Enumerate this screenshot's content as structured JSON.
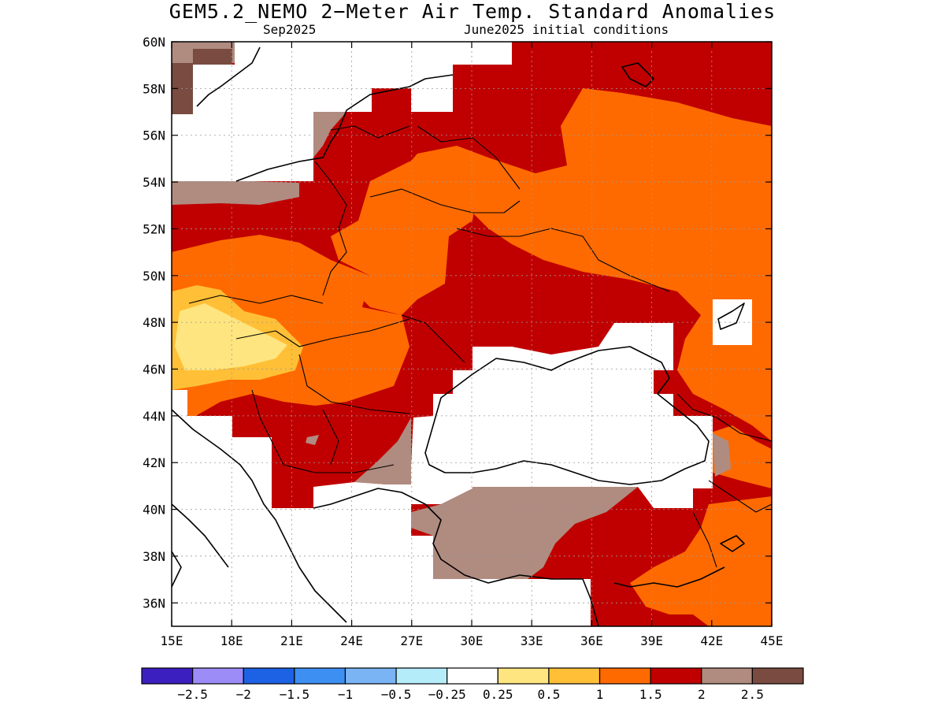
{
  "title": "GEM5.2_NEMO 2−Meter Air Temp. Standard Anomalies",
  "subtitle_left": "Sep2025",
  "subtitle_right": "June2025 initial conditions",
  "map": {
    "lon_range": [
      15,
      45
    ],
    "lat_range": [
      35,
      60
    ],
    "lon_ticks": [
      "15E",
      "18E",
      "21E",
      "24E",
      "27E",
      "30E",
      "33E",
      "36E",
      "39E",
      "42E",
      "45E"
    ],
    "lat_ticks": [
      "60N",
      "58N",
      "56N",
      "54N",
      "52N",
      "50N",
      "48N",
      "46N",
      "44N",
      "42N",
      "40N",
      "38N",
      "36N"
    ]
  },
  "colorbar": {
    "colors": [
      "#3b1fbf",
      "#9c8cf7",
      "#1d62e4",
      "#3d8ff2",
      "#7ab4f5",
      "#b5ecfa",
      "#ffffff",
      "#ffe57f",
      "#ffbf36",
      "#ff6a00",
      "#c00000",
      "#b08b80",
      "#7a4b40"
    ],
    "labels": [
      "−2.5",
      "−2",
      "−1.5",
      "−1",
      "−0.5",
      "−0.25",
      "0.25",
      "0.5",
      "1",
      "1.5",
      "2",
      "2.5"
    ]
  }
}
